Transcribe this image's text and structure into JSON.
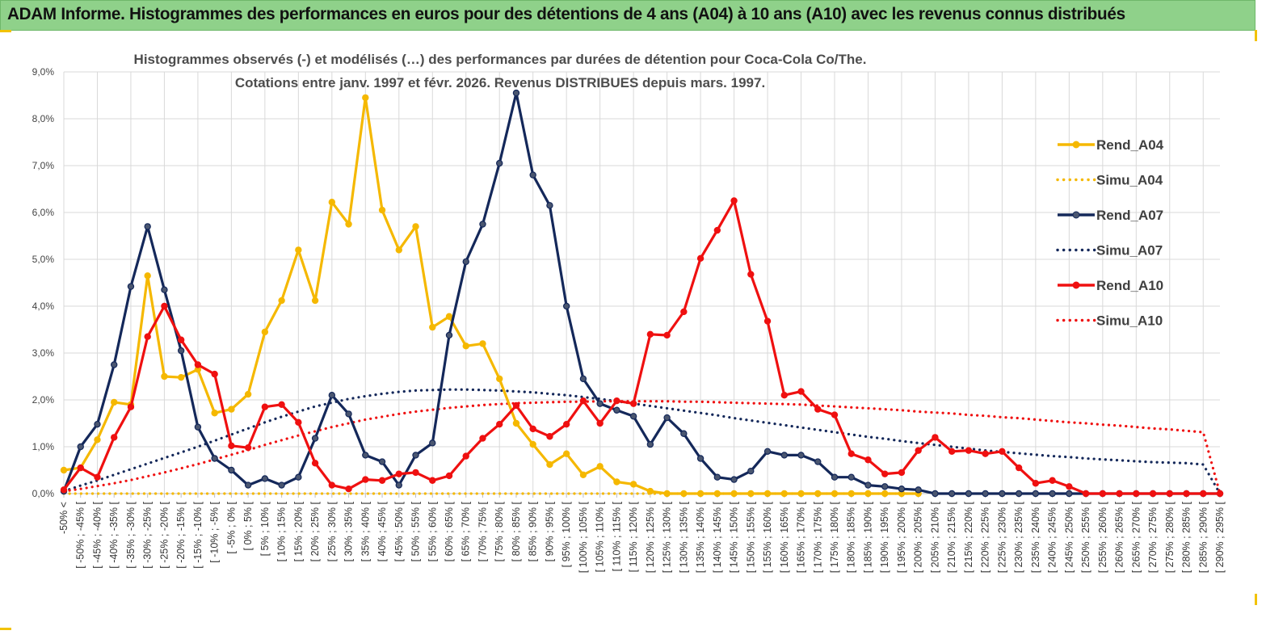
{
  "header": {
    "title": "ADAM Informe. Histogrammes des performances en euros pour des détentions de 4 ans (A04) à 10 ans (A10) avec les revenus connus distribués"
  },
  "colors": {
    "header_bg": "#8fd18a",
    "grid": "#d9d9d9",
    "frame_accent": "#f2c200"
  },
  "chart_data": {
    "type": "line",
    "title": "Histogrammes observés (-)  et modélisés (…) des performances par durées de détention pour Coca-Cola Co/The.",
    "subtitle": "Cotations entre janv. 1997 et févr.  2026. Revenus DISTRIBUES depuis mars. 1997.",
    "xlabel": "",
    "ylabel": "",
    "ylim": [
      0,
      9
    ],
    "yticks": [
      "0,0%",
      "1,0%",
      "2,0%",
      "3,0%",
      "4,0%",
      "5,0%",
      "6,0%",
      "7,0%",
      "8,0%",
      "9,0%"
    ],
    "grid": true,
    "legend_position": "right",
    "categories": [
      "-50% <",
      "[ -50% ; -45% [",
      "[ -45% ; -40% [",
      "[ -40% ; -35% [",
      "[ -35% ; -30% [",
      "[ -30% ; -25% [",
      "[ -25% ; -20% [",
      "[ -20% ; -15% [",
      "[ -15% ; -10% [",
      "[ -10% ; -5% [",
      "[ -5% ; 0% [",
      "[ 0% ; 5% [",
      "[ 5% ; 10% [",
      "[ 10% ; 15% [",
      "[ 15% ; 20% [",
      "[ 20% ; 25% [",
      "[ 25% ; 30% [",
      "[ 30% ; 35% [",
      "[ 35% ; 40% [",
      "[ 40% ; 45% [",
      "[ 45% ; 50% [",
      "[ 50% ; 55% [",
      "[ 55% ; 60% [",
      "[ 60% ; 65% [",
      "[ 65% ; 70% [",
      "[ 70% ; 75% [",
      "[ 75% ; 80% [",
      "[ 80% ; 85% [",
      "[ 85% ; 90% [",
      "[ 90% ; 95% [",
      "[ 95% ; 100% [",
      "[ 100% ; 105% [",
      "[ 105% ; 110% [",
      "[ 110% ; 115% [",
      "[ 115% ; 120% [",
      "[ 120% ; 125% [",
      "[ 125% ; 130% [",
      "[ 130% ; 135% [",
      "[ 135% ; 140% [",
      "[ 140% ; 145% [",
      "[ 145% ; 150% [",
      "[ 150% ; 155% [",
      "[ 155% ; 160% [",
      "[ 160% ; 165% [",
      "[ 165% ; 170% [",
      "[ 170% ; 175% [",
      "[ 175% ; 180% [",
      "[ 180% ; 185% [",
      "[ 185% ; 190% [",
      "[ 190% ; 195% [",
      "[ 195% ; 200% [",
      "[ 200% ; 205% [",
      "[ 205% ; 210% [",
      "[ 210% ; 215% [",
      "[ 215% ; 220% [",
      "[ 220% ; 225% [",
      "[ 225% ; 230% [",
      "[ 230% ; 235% [",
      "[ 235% ; 240% [",
      "[ 240% ; 245% [",
      "[ 245% ; 250% [",
      "[ 250% ; 255% [",
      "[ 255% ; 260% [",
      "[ 260% ; 265% [",
      "[ 265% ; 270% [",
      "[ 270% ; 275% [",
      "[ 275% ; 280% [",
      "[ 280% ; 285% [",
      "[ 285% ; 290% [",
      "[ 290% ; 295% ["
    ],
    "shown_label_indices": [
      0,
      2,
      4,
      6,
      8,
      10,
      12,
      14,
      16,
      18,
      20,
      22,
      24,
      26,
      28,
      30,
      32,
      34,
      36,
      38,
      40,
      42,
      44,
      46,
      48,
      50,
      52,
      54,
      56,
      58,
      60,
      62,
      64,
      66,
      68
    ],
    "series": [
      {
        "name": "Rend_A04",
        "style": "solid",
        "color": "#f5b800",
        "markers": true,
        "values": [
          0.5,
          0.55,
          1.15,
          1.95,
          1.9,
          4.65,
          2.5,
          2.48,
          2.65,
          1.72,
          1.8,
          2.12,
          3.45,
          4.12,
          5.2,
          4.12,
          6.22,
          5.75,
          8.45,
          6.05,
          5.2,
          5.7,
          3.55,
          3.78,
          3.15,
          3.2,
          2.45,
          1.5,
          1.05,
          0.62,
          0.85,
          0.4,
          0.58,
          0.25,
          0.2,
          0.05,
          0,
          0,
          0,
          0,
          0,
          0,
          0,
          0,
          0,
          0,
          0,
          0,
          0,
          0,
          0,
          0,
          null,
          null,
          null,
          null,
          null,
          null,
          null,
          null,
          null,
          null,
          null,
          null,
          null,
          null,
          null,
          null,
          null,
          null
        ]
      },
      {
        "name": "Simu_A04",
        "style": "dotted",
        "color": "#f5b800",
        "markers": false,
        "values": [
          0,
          0,
          0,
          0,
          0,
          0,
          0,
          0,
          0,
          0,
          0,
          0,
          0,
          0,
          0,
          0,
          0,
          0,
          0,
          0,
          0,
          0,
          0,
          0,
          0,
          0,
          0,
          0,
          0,
          0,
          0,
          0,
          0,
          0,
          0,
          0,
          0,
          0,
          0,
          0,
          0,
          0,
          0,
          0,
          0,
          0,
          0,
          0,
          0,
          0,
          0,
          0,
          null,
          null,
          null,
          null,
          null,
          null,
          null,
          null,
          null,
          null,
          null,
          null,
          null,
          null,
          null,
          null,
          null,
          null
        ]
      },
      {
        "name": "Rend_A07",
        "style": "solid",
        "color": "#14285a",
        "markers": true,
        "values": [
          0.05,
          1.0,
          1.48,
          2.75,
          4.42,
          5.7,
          4.35,
          3.05,
          1.42,
          0.75,
          0.5,
          0.18,
          0.32,
          0.18,
          0.35,
          1.18,
          2.1,
          1.7,
          0.82,
          0.68,
          0.18,
          0.82,
          1.08,
          3.38,
          4.95,
          5.75,
          7.05,
          8.55,
          6.8,
          6.15,
          4.0,
          2.45,
          1.92,
          1.78,
          1.65,
          1.05,
          1.62,
          1.28,
          0.75,
          0.35,
          0.3,
          0.48,
          0.9,
          0.82,
          0.82,
          0.68,
          0.35,
          0.35,
          0.18,
          0.15,
          0.1,
          0.08,
          0,
          0,
          0,
          0,
          0,
          0,
          0,
          0,
          0,
          0,
          0,
          0,
          0,
          0,
          0,
          0,
          0,
          0
        ]
      },
      {
        "name": "Simu_A07",
        "style": "dotted",
        "color": "#14285a",
        "markers": false,
        "values": [
          0.05,
          0.17,
          0.28,
          0.4,
          0.52,
          0.64,
          0.76,
          0.88,
          1.0,
          1.13,
          1.26,
          1.39,
          1.52,
          1.64,
          1.75,
          1.86,
          1.94,
          2.02,
          2.08,
          2.13,
          2.17,
          2.2,
          2.21,
          2.22,
          2.22,
          2.21,
          2.2,
          2.18,
          2.16,
          2.13,
          2.1,
          2.06,
          2.02,
          1.97,
          1.92,
          1.87,
          1.82,
          1.77,
          1.72,
          1.67,
          1.61,
          1.56,
          1.51,
          1.46,
          1.41,
          1.36,
          1.31,
          1.26,
          1.21,
          1.17,
          1.12,
          1.08,
          1.04,
          1.0,
          0.96,
          0.92,
          0.89,
          0.86,
          0.83,
          0.8,
          0.78,
          0.75,
          0.73,
          0.71,
          0.69,
          0.67,
          0.66,
          0.65,
          0.62,
          0.0
        ]
      },
      {
        "name": "Rend_A10",
        "style": "solid",
        "color": "#ef1010",
        "markers": true,
        "values": [
          0.08,
          0.55,
          0.35,
          1.2,
          1.85,
          3.35,
          4.0,
          3.28,
          2.75,
          2.55,
          1.02,
          0.98,
          1.85,
          1.9,
          1.52,
          0.65,
          0.18,
          0.1,
          0.3,
          0.28,
          0.42,
          0.45,
          0.28,
          0.38,
          0.8,
          1.18,
          1.48,
          1.88,
          1.38,
          1.22,
          1.48,
          1.98,
          1.5,
          1.98,
          1.92,
          3.4,
          3.38,
          3.88,
          5.02,
          5.62,
          6.25,
          4.68,
          3.68,
          2.1,
          2.18,
          1.8,
          1.68,
          0.85,
          0.72,
          0.42,
          0.45,
          0.92,
          1.2,
          0.9,
          0.92,
          0.85,
          0.9,
          0.55,
          0.22,
          0.28,
          0.15,
          0,
          0,
          0,
          0,
          0,
          0,
          0,
          0,
          0
        ]
      },
      {
        "name": "Simu_A10",
        "style": "dotted",
        "color": "#ef1010",
        "markers": false,
        "values": [
          0.05,
          0.1,
          0.16,
          0.22,
          0.29,
          0.37,
          0.45,
          0.54,
          0.63,
          0.73,
          0.83,
          0.93,
          1.04,
          1.14,
          1.24,
          1.33,
          1.42,
          1.5,
          1.58,
          1.64,
          1.7,
          1.75,
          1.79,
          1.83,
          1.86,
          1.89,
          1.91,
          1.93,
          1.94,
          1.95,
          1.96,
          1.96,
          1.97,
          1.97,
          1.97,
          1.97,
          1.97,
          1.96,
          1.96,
          1.95,
          1.94,
          1.93,
          1.92,
          1.91,
          1.9,
          1.88,
          1.86,
          1.84,
          1.82,
          1.8,
          1.78,
          1.75,
          1.73,
          1.71,
          1.68,
          1.66,
          1.63,
          1.61,
          1.58,
          1.55,
          1.52,
          1.5,
          1.47,
          1.45,
          1.42,
          1.39,
          1.37,
          1.34,
          1.31,
          0.0
        ]
      }
    ]
  }
}
